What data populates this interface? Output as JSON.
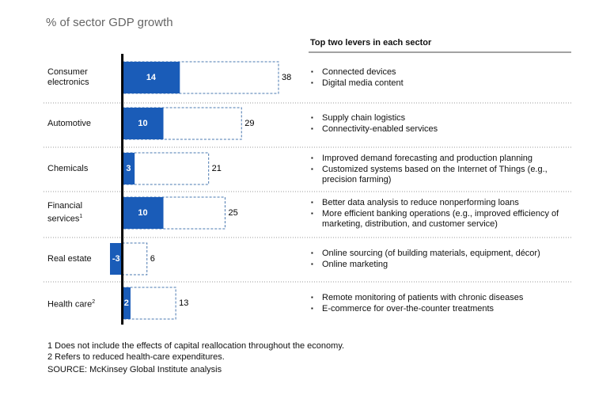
{
  "chart_data": {
    "type": "bar",
    "orientation": "horizontal",
    "title": "% of sector GDP growth",
    "levers_title": "Top two levers in each sector",
    "categories": [
      "Consumer electronics",
      "Automotive",
      "Chemicals",
      "Financial services",
      "Real estate",
      "Health care"
    ],
    "category_notes": [
      null,
      null,
      null,
      "1",
      null,
      "2"
    ],
    "series": [
      {
        "color": "#1a5cb8",
        "style": "solid",
        "values": [
          14,
          10,
          3,
          10,
          -3,
          2
        ]
      },
      {
        "color": "#4a78b0",
        "style": "dashed",
        "values": [
          38,
          29,
          21,
          25,
          6,
          13
        ]
      }
    ],
    "xlim": [
      -3,
      38
    ],
    "levers": [
      [
        "Connected devices",
        "Digital media content"
      ],
      [
        "Supply chain logistics",
        "Connectivity-enabled services"
      ],
      [
        "Improved demand forecasting and production planning",
        "Customized systems based on the Internet of Things (e.g., precision farming)"
      ],
      [
        "Better data analysis to reduce nonperforming loans",
        "More efficient banking operations (e.g., improved efficiency of marketing, distribution, and customer service)"
      ],
      [
        "Online sourcing (of building materials, equipment, décor)",
        "Online marketing"
      ],
      [
        "Remote monitoring of patients with chronic diseases",
        "E-commerce for over-the-counter treatments"
      ]
    ],
    "footnotes": [
      "1   Does not include the effects of capital reallocation throughout the economy.",
      "2   Refers to reduced health-care expenditures."
    ],
    "source": "SOURCE: McKinsey Global Institute analysis"
  }
}
